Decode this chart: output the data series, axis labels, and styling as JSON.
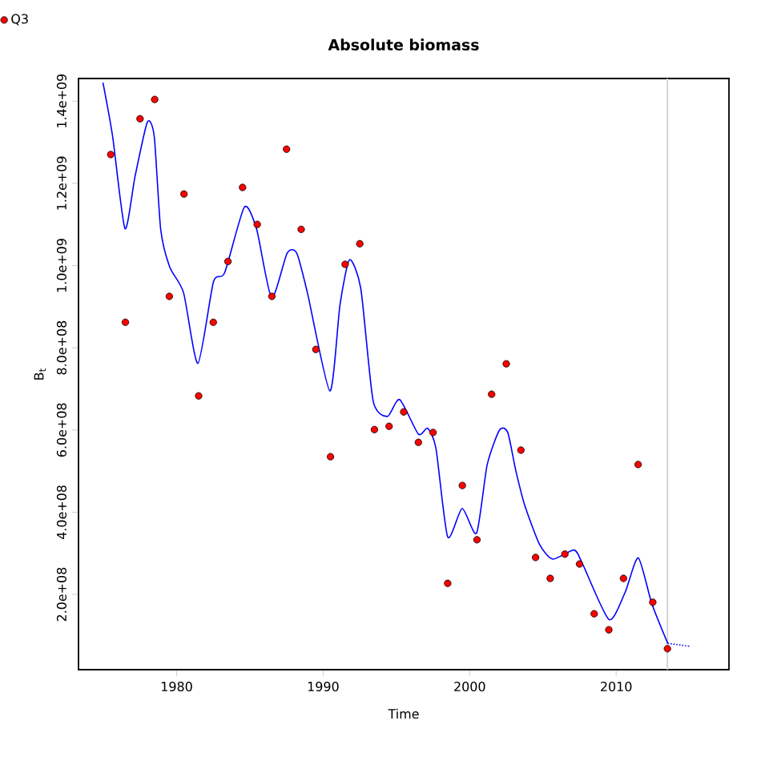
{
  "chart_data": {
    "type": "scatter",
    "title": "Absolute biomass",
    "xlabel": "Time",
    "ylabel": "B$_{t}$",
    "xlim": [
      1973.3,
      2017.7
    ],
    "ylim": [
      17000000.0,
      1455000000.0
    ],
    "xticks": [
      1980,
      1990,
      2000,
      2010
    ],
    "yticks": [
      {
        "value": 200000000.0,
        "label": "2.0e+08"
      },
      {
        "value": 400000000.0,
        "label": "4.0e+08"
      },
      {
        "value": 600000000.0,
        "label": "6.0e+08"
      },
      {
        "value": 800000000.0,
        "label": "8.0e+08"
      },
      {
        "value": 1000000000.0,
        "label": "1.0e+09"
      },
      {
        "value": 1200000000.0,
        "label": "1.2e+09"
      },
      {
        "value": 1400000000.0,
        "label": "1.4e+09"
      }
    ],
    "legend": "top left",
    "ref_lines": [
      {
        "axis": "x",
        "value": 2013.5,
        "color": "#d3d3d3"
      }
    ],
    "series": [
      {
        "type": "line",
        "color": "#0000ff",
        "marker": "none",
        "line_style": "solid",
        "x": [
          1974.97,
          1975.63,
          1976.47,
          1977.16,
          1978.0,
          1978.47,
          1978.91,
          1979.53,
          1980.47,
          1981.45,
          1982.51,
          1983.28,
          1984.62,
          1985.46,
          1986.48,
          1987.54,
          1988.2,
          1988.93,
          1990.46,
          1991.15,
          1991.8,
          1992.57,
          1993.41,
          1994.39,
          1995.22,
          1996.5,
          1997.13,
          1997.7,
          1998.5,
          1999.49,
          2000.47,
          2001.2,
          2002.04,
          2002.6,
          2003.14,
          2003.75,
          2004.78,
          2005.68,
          2007.14,
          2007.76,
          2009.51,
          2010.6,
          2011.51,
          2012.43,
          2013.52
        ],
        "values": [
          1445000000.0,
          1314000000.0,
          1090000000.0,
          1217000000.0,
          1349000000.0,
          1314000000.0,
          1088000000.0,
          996000000.0,
          934000000.0,
          762000000.0,
          960000000.0,
          983000000.0,
          1142000000.0,
          1088000000.0,
          922000000.0,
          1030000000.0,
          1030000000.0,
          933000000.0,
          695000000.0,
          905000000.0,
          1014000000.0,
          944000000.0,
          671000000.0,
          633000000.0,
          674000000.0,
          590000000.0,
          604000000.0,
          555000000.0,
          340000000.0,
          409000000.0,
          349000000.0,
          516000000.0,
          600000000.0,
          594000000.0,
          503000000.0,
          418000000.0,
          321000000.0,
          286000000.0,
          308000000.0,
          270000000.0,
          139000000.0,
          204000000.0,
          289000000.0,
          178000000.0,
          81000000.0
        ]
      },
      {
        "type": "line",
        "color": "#0000ff",
        "marker": "none",
        "line_style": "dotted",
        "x": [
          2013.52,
          2015.0
        ],
        "values": [
          81000000.0,
          74000000.0
        ]
      },
      {
        "name": "Q3",
        "color": "#ff0000",
        "marker": "circle",
        "x": [
          1975.5,
          1976.5,
          1977.5,
          1978.5,
          1979.5,
          1980.5,
          1981.5,
          1982.5,
          1983.5,
          1984.5,
          1985.5,
          1986.5,
          1987.5,
          1988.5,
          1989.5,
          1990.5,
          1991.5,
          1992.5,
          1993.5,
          1994.5,
          1995.5,
          1996.5,
          1997.5,
          1998.5,
          1999.5,
          2000.5,
          2001.5,
          2002.5,
          2003.5,
          2004.5,
          2005.5,
          2006.5,
          2007.5,
          2008.5,
          2009.5,
          2010.5,
          2011.5,
          2012.5,
          2013.5
        ],
        "values": [
          1270000000.0,
          862000000.0,
          1357000000.0,
          1404000000.0,
          925000000.0,
          1174000000.0,
          683000000.0,
          862000000.0,
          1010000000.0,
          1190000000.0,
          1100000000.0,
          925000000.0,
          1283000000.0,
          1088000000.0,
          796000000.0,
          535000000.0,
          1003000000.0,
          1053000000.0,
          601000000.0,
          609000000.0,
          644000000.0,
          570000000.0,
          594000000.0,
          227000000.0,
          465000000.0,
          333000000.0,
          687000000.0,
          761000000.0,
          551000000.0,
          290000000.0,
          239000000.0,
          298000000.0,
          274000000.0,
          153000000.0,
          114000000.0,
          239000000.0,
          516000000.0,
          181000000.0,
          68000000.0
        ]
      }
    ]
  }
}
